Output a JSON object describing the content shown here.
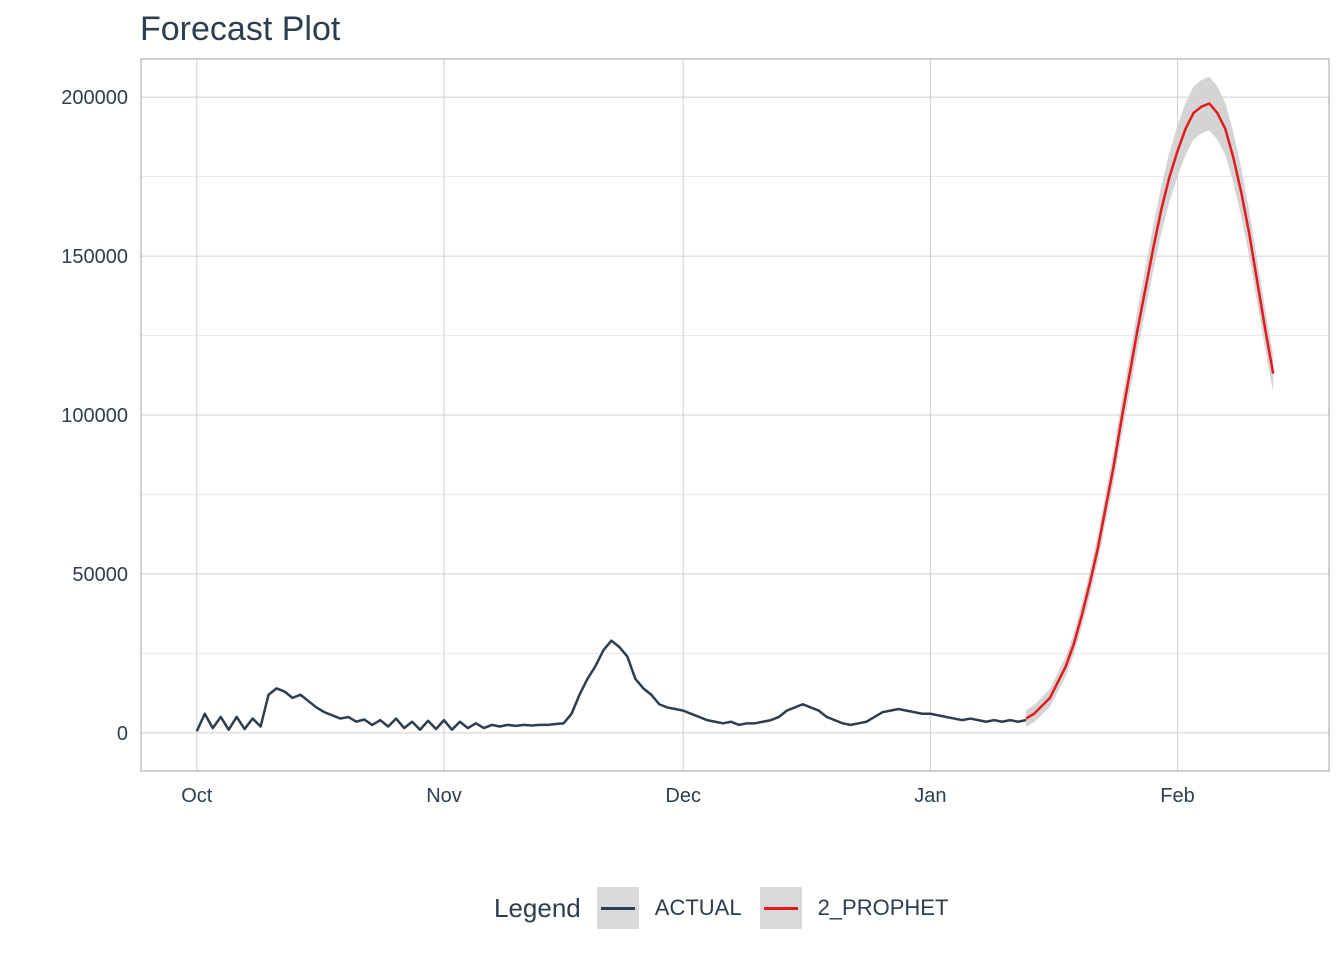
{
  "chart_data": {
    "type": "line",
    "title": "Forecast Plot",
    "xlabel": "",
    "ylabel": "",
    "x_ticks": [
      "Oct",
      "Nov",
      "Dec",
      "Jan",
      "Feb"
    ],
    "x_tick_dates": [
      "2020-10-01",
      "2020-11-01",
      "2020-12-01",
      "2021-01-01",
      "2021-02-01"
    ],
    "y_ticks": [
      0,
      50000,
      100000,
      150000,
      200000
    ],
    "xlim": [
      "2020-09-24",
      "2021-02-20"
    ],
    "ylim": [
      -12000,
      212000
    ],
    "grid": true,
    "legend_title": "Legend",
    "legend_position": "bottom",
    "series": [
      {
        "name": "ACTUAL",
        "color": "#2c3e50",
        "points": [
          [
            "2020-10-01",
            500
          ],
          [
            "2020-10-02",
            6000
          ],
          [
            "2020-10-03",
            1500
          ],
          [
            "2020-10-04",
            5000
          ],
          [
            "2020-10-05",
            1000
          ],
          [
            "2020-10-06",
            5000
          ],
          [
            "2020-10-07",
            1200
          ],
          [
            "2020-10-08",
            4500
          ],
          [
            "2020-10-09",
            2000
          ],
          [
            "2020-10-10",
            12000
          ],
          [
            "2020-10-11",
            14000
          ],
          [
            "2020-10-12",
            13000
          ],
          [
            "2020-10-13",
            11000
          ],
          [
            "2020-10-14",
            12000
          ],
          [
            "2020-10-15",
            10000
          ],
          [
            "2020-10-16",
            8000
          ],
          [
            "2020-10-17",
            6500
          ],
          [
            "2020-10-18",
            5500
          ],
          [
            "2020-10-19",
            4500
          ],
          [
            "2020-10-20",
            5000
          ],
          [
            "2020-10-21",
            3500
          ],
          [
            "2020-10-22",
            4200
          ],
          [
            "2020-10-23",
            2500
          ],
          [
            "2020-10-24",
            4000
          ],
          [
            "2020-10-25",
            2000
          ],
          [
            "2020-10-26",
            4500
          ],
          [
            "2020-10-27",
            1500
          ],
          [
            "2020-10-28",
            3500
          ],
          [
            "2020-10-29",
            1000
          ],
          [
            "2020-10-30",
            3800
          ],
          [
            "2020-10-31",
            1200
          ],
          [
            "2020-11-01",
            4000
          ],
          [
            "2020-11-02",
            1000
          ],
          [
            "2020-11-03",
            3500
          ],
          [
            "2020-11-04",
            1500
          ],
          [
            "2020-11-05",
            3000
          ],
          [
            "2020-11-06",
            1500
          ],
          [
            "2020-11-07",
            2500
          ],
          [
            "2020-11-08",
            2000
          ],
          [
            "2020-11-09",
            2500
          ],
          [
            "2020-11-10",
            2200
          ],
          [
            "2020-11-11",
            2500
          ],
          [
            "2020-11-12",
            2300
          ],
          [
            "2020-11-13",
            2500
          ],
          [
            "2020-11-14",
            2500
          ],
          [
            "2020-11-15",
            2800
          ],
          [
            "2020-11-16",
            3000
          ],
          [
            "2020-11-17",
            6000
          ],
          [
            "2020-11-18",
            12000
          ],
          [
            "2020-11-19",
            17000
          ],
          [
            "2020-11-20",
            21000
          ],
          [
            "2020-11-21",
            26000
          ],
          [
            "2020-11-22",
            29000
          ],
          [
            "2020-11-23",
            27000
          ],
          [
            "2020-11-24",
            24000
          ],
          [
            "2020-11-25",
            17000
          ],
          [
            "2020-11-26",
            14000
          ],
          [
            "2020-11-27",
            12000
          ],
          [
            "2020-11-28",
            9000
          ],
          [
            "2020-11-29",
            8000
          ],
          [
            "2020-11-30",
            7500
          ],
          [
            "2020-12-01",
            7000
          ],
          [
            "2020-12-02",
            6000
          ],
          [
            "2020-12-03",
            5000
          ],
          [
            "2020-12-04",
            4000
          ],
          [
            "2020-12-05",
            3500
          ],
          [
            "2020-12-06",
            3000
          ],
          [
            "2020-12-07",
            3500
          ],
          [
            "2020-12-08",
            2500
          ],
          [
            "2020-12-09",
            3000
          ],
          [
            "2020-12-10",
            3000
          ],
          [
            "2020-12-11",
            3500
          ],
          [
            "2020-12-12",
            4000
          ],
          [
            "2020-12-13",
            5000
          ],
          [
            "2020-12-14",
            7000
          ],
          [
            "2020-12-15",
            8000
          ],
          [
            "2020-12-16",
            9000
          ],
          [
            "2020-12-17",
            8000
          ],
          [
            "2020-12-18",
            7000
          ],
          [
            "2020-12-19",
            5000
          ],
          [
            "2020-12-20",
            4000
          ],
          [
            "2020-12-21",
            3000
          ],
          [
            "2020-12-22",
            2500
          ],
          [
            "2020-12-23",
            3000
          ],
          [
            "2020-12-24",
            3500
          ],
          [
            "2020-12-25",
            5000
          ],
          [
            "2020-12-26",
            6500
          ],
          [
            "2020-12-27",
            7000
          ],
          [
            "2020-12-28",
            7500
          ],
          [
            "2020-12-29",
            7000
          ],
          [
            "2020-12-30",
            6500
          ],
          [
            "2020-12-31",
            6000
          ],
          [
            "2021-01-01",
            6000
          ],
          [
            "2021-01-02",
            5500
          ],
          [
            "2021-01-03",
            5000
          ],
          [
            "2021-01-04",
            4500
          ],
          [
            "2021-01-05",
            4000
          ],
          [
            "2021-01-06",
            4500
          ],
          [
            "2021-01-07",
            4000
          ],
          [
            "2021-01-08",
            3500
          ],
          [
            "2021-01-09",
            4000
          ],
          [
            "2021-01-10",
            3500
          ],
          [
            "2021-01-11",
            4000
          ],
          [
            "2021-01-12",
            3500
          ],
          [
            "2021-01-13",
            4000
          ]
        ]
      },
      {
        "name": "2_PROPHET",
        "color": "#e31a1c",
        "points": [
          [
            "2021-01-13",
            4500
          ],
          [
            "2021-01-14",
            6000
          ],
          [
            "2021-01-15",
            8500
          ],
          [
            "2021-01-16",
            11000
          ],
          [
            "2021-01-17",
            16000
          ],
          [
            "2021-01-18",
            21000
          ],
          [
            "2021-01-19",
            28000
          ],
          [
            "2021-01-20",
            37000
          ],
          [
            "2021-01-21",
            47000
          ],
          [
            "2021-01-22",
            58000
          ],
          [
            "2021-01-23",
            71000
          ],
          [
            "2021-01-24",
            84000
          ],
          [
            "2021-01-25",
            99000
          ],
          [
            "2021-01-26",
            113000
          ],
          [
            "2021-01-27",
            127000
          ],
          [
            "2021-01-28",
            140000
          ],
          [
            "2021-01-29",
            153000
          ],
          [
            "2021-01-30",
            165000
          ],
          [
            "2021-01-31",
            175000
          ],
          [
            "2021-02-01",
            183000
          ],
          [
            "2021-02-02",
            190000
          ],
          [
            "2021-02-03",
            195000
          ],
          [
            "2021-02-04",
            197000
          ],
          [
            "2021-02-05",
            198000
          ],
          [
            "2021-02-06",
            195000
          ],
          [
            "2021-02-07",
            190000
          ],
          [
            "2021-02-08",
            181000
          ],
          [
            "2021-02-09",
            170000
          ],
          [
            "2021-02-10",
            157000
          ],
          [
            "2021-02-11",
            142000
          ],
          [
            "2021-02-12",
            127000
          ],
          [
            "2021-02-13",
            113000
          ]
        ],
        "conf_band": true
      }
    ]
  }
}
